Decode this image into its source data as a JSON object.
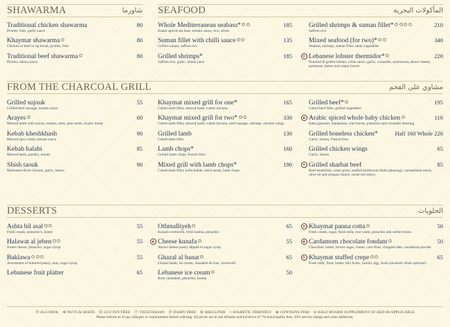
{
  "colors": {
    "text": "#243556",
    "header": "#6a6850",
    "half_board_marker": "#7a2a28",
    "background": "#fbf7e2"
  },
  "shawarma": {
    "title": "SHAWARMA",
    "arabic": "شاورما",
    "items": [
      {
        "name": "Traditional chicken shawarma",
        "desc": "Pickles, fries, garlic sauce",
        "price": "80",
        "tags": []
      },
      {
        "name": "Khaymat shawarma",
        "desc": "Chicken or beef in saj bread, pickles, fries",
        "price": "80",
        "tags": [
          "nuts-seeds"
        ]
      },
      {
        "name": "Traditional beef shawarma",
        "desc": "Pickles, tahina sauce",
        "price": "80",
        "tags": [
          "nuts-seeds"
        ]
      }
    ]
  },
  "seafood": {
    "title": "SEAFOOD",
    "arabic": "المأكولات البحرية",
    "columns": [
      [
        {
          "name": "Whole Mediterranean seabass*",
          "desc": "Zaatar spiced sea bass, tomato sauce, rice, olives",
          "price": "185",
          "tags": [
            "gluten-free",
            "contains-fish"
          ]
        },
        {
          "name": "Suman fillet with chilli sauce",
          "desc": "Grilled suman, saffron rice",
          "price": "135",
          "tags": [
            "gluten-free",
            "contains-fish"
          ]
        },
        {
          "name": "Grilled shrimps*",
          "desc": "Saffron rice, garlic, lemon juice",
          "price": "185",
          "tags": []
        }
      ],
      [
        {
          "name": "Grilled shrimps & suman fillet*",
          "desc": "Saffron rice",
          "price": "210",
          "tags": [
            "shellfish",
            "gluten-free",
            "dairy-free",
            "contains-fish"
          ]
        },
        {
          "name": "Mixed seafood (for two)*",
          "desc": "Seabass, shrimps, suman fillet, sauté vegetables",
          "price": "340",
          "tags": [
            "shellfish",
            "contains-fish"
          ]
        },
        {
          "name": "Lebanese lobster thermidor*",
          "desc": "Poached & grilled lobster, white sauce, garlic, coriander, mushroom, akawi cheese, parmesan cheese and zaatar leaves",
          "price": "220",
          "tags": [
            "shellfish"
          ],
          "half_board": true
        }
      ]
    ]
  },
  "grill": {
    "title": "FROM THE CHARCOAL GRILL",
    "arabic": "مشاوي على الفحم",
    "columns": [
      [
        {
          "name": "Grilled sujouk",
          "desc": "Grilled beef sausage, tomato sauce",
          "price": "55",
          "tags": []
        },
        {
          "name": "Arayes",
          "desc": "Minced lamb with onions, tomato, mint, pine seeds, Arabic bread",
          "price": "60",
          "tags": [
            "nuts-seeds"
          ]
        },
        {
          "name": "Kebab kheshkhash",
          "desc": "Minced spicy lamb, tomato sauce",
          "price": "90",
          "tags": []
        },
        {
          "name": "Kebab halabi",
          "desc": "Minced lamb, parsley, onions",
          "price": "85",
          "tags": []
        },
        {
          "name": "Shish taouk",
          "desc": "Marinated diced chicken, garlic, lemon",
          "price": "90",
          "tags": []
        }
      ],
      [
        {
          "name": "Khaymat mixed grill for one*",
          "desc": "Cubed lamb fillet, minced lamb, cubed chicken,",
          "price": "165",
          "tags": []
        },
        {
          "name": "Khaymat mixed grill for two*",
          "desc": "Cubed lamb fillet, minced lamb, cubed chicken, beef sausage, shrimps, chicken wings",
          "price": "330",
          "tags": [
            "shellfish",
            "gluten-free"
          ]
        },
        {
          "name": "Grilled lamb",
          "desc": "Cubed lamb fillet",
          "price": "130",
          "tags": []
        },
        {
          "name": "Lamb chops*",
          "desc": "Grilled lamb chops, French fries",
          "price": "160",
          "tags": []
        },
        {
          "name": "Mixed grill with lamb chops*",
          "desc": "Cubed lamb fillet, kofta kebab, shish taouk, lamb chops",
          "price": "190",
          "tags": []
        }
      ],
      [
        {
          "name": "Grilled beef*",
          "desc": "Cubed beef fillet, grilled vegetables",
          "price": "195",
          "tags": [
            "nuts-seeds"
          ]
        },
        {
          "name": "Arabic spiced whole baby chicken",
          "desc": "Baba ganoush, muhamara, vine leaves, pistachio and coriander dressing",
          "price": "110",
          "tags": [
            "nuts-seeds"
          ],
          "half_board": true
        },
        {
          "name": "Grilled boneless chicken*",
          "desc": "Garlic, lemon, French fries",
          "price": "Half 160   Whole 220",
          "tags": []
        },
        {
          "name": "Grilled chicken wings",
          "desc": "Garlic, lemon",
          "price": "65",
          "tags": []
        },
        {
          "name": "Grilled sharhat beef",
          "desc": "Beef tenderloin, water grass, stuffed mushroom (baba ghanoug), caramelized onion, olive oil and oregano Sauce, sweet red cherry",
          "price": "85",
          "tags": [],
          "half_board": true
        }
      ]
    ]
  },
  "desserts": {
    "title": "DESSERTS",
    "arabic": "الحلويات",
    "columns": [
      [
        {
          "name": "Ashta bil asal",
          "desc": "Fresh cream, pistachio's, honey",
          "price": "55",
          "tags": [
            "nuts-seeds",
            "gluten-free"
          ]
        },
        {
          "name": "Halawat al jeben",
          "desc": "Sweet cheese, pistachio, sugar syrup",
          "price": "55",
          "tags": [
            "nuts-seeds",
            "gluten-free"
          ]
        },
        {
          "name": "Baklawa",
          "desc": "Assortment of buttered pastry, nuts, sugar syrup",
          "price": "55",
          "tags": [
            "nuts-seeds",
            "gluten-free",
            "gluten-free"
          ]
        },
        {
          "name": "Lebanese fruit platter",
          "desc": "",
          "price": "65",
          "tags": []
        }
      ],
      [
        {
          "name": "Othmalliyeh",
          "desc": "Kunafa vermicelli, fresh kashta, pistachio",
          "price": "65",
          "tags": [
            "nuts-seeds"
          ]
        },
        {
          "name": "Cheese kunafa",
          "desc": "Akawi cheese pastry dipped in sugar syrup",
          "price": "55",
          "tags": [
            "nuts-seeds"
          ],
          "half_board": true
        },
        {
          "name": "Ghazal al banat",
          "desc": "Ghazal banat, ice cream, mistakeh & rose, vermicelli",
          "price": "65",
          "tags": [
            "nuts-seeds"
          ]
        },
        {
          "name": "Lebanese ice cream",
          "desc": "Rose, mistakeh, pistachio, kashta",
          "price": "50",
          "tags": [
            "gluten-free"
          ]
        }
      ],
      [
        {
          "name": "Khaymat panna cotta",
          "desc": "Fresh cream, sugar, fresh milk, rose water, pistachio and sorbet lemon",
          "price": "50",
          "tags": [
            "nuts-seeds"
          ],
          "half_board": true
        },
        {
          "name": "Cardamom chocolate fondant",
          "desc": "Chocolate, butter, brown sugar, cream, corn flour, chopped date, cardamom powder",
          "price": "50",
          "tags": [
            "nuts-seeds"
          ],
          "half_board": true
        },
        {
          "name": "Khaymat stuffed crepe",
          "desc": "Fresh milk, flour, butter, mix fruits, vanilla, egg, Arak (alcoholic drink optional)",
          "price": "65",
          "tags": [
            "nuts-seeds",
            "alcohol"
          ],
          "half_board": true
        }
      ]
    ]
  },
  "footer": {
    "legend": [
      "ⓐ ALCOHOL",
      "⊛ NUTS & SEEDS",
      "ⓖ GLUTEN FREE",
      "ⓥ VEGETARIAN",
      "ⓓ DAIRY FREE",
      "⊛ SHELLFISH",
      "○ DIABETIC FRIENDLY",
      "⊕ CONTAINS FISH",
      "⊙ HALF BOARD SUPPLEMENT OF AED 80 APPLICABLE"
    ],
    "note": "Please inform us of any allergies or requirements before ordering. All prices are in uae dirhams and inclusive of 7% municipality fees, 10% service charge and value added tax."
  }
}
